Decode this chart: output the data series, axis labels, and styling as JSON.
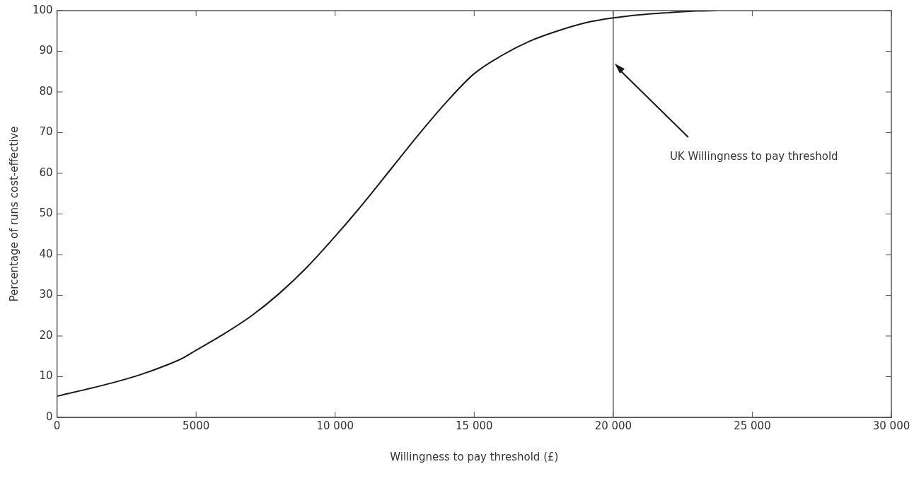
{
  "chart_data": {
    "type": "line",
    "xlabel": "Willingness to pay threshold (£)",
    "ylabel": "Percentage of runs cost-effective",
    "x": [
      0,
      1000,
      2000,
      3000,
      4000,
      4500,
      5000,
      6000,
      7000,
      8000,
      9000,
      10000,
      11000,
      12000,
      13000,
      14000,
      15000,
      16000,
      17000,
      18000,
      19000,
      20000,
      21000,
      22000,
      23000,
      23700
    ],
    "series": [
      {
        "color": "#1a1a1a",
        "values": [
          5.2,
          6.8,
          8.5,
          10.5,
          13,
          14.5,
          16.5,
          20.5,
          25,
          30.5,
          37,
          44.5,
          52.5,
          61,
          69.5,
          77.5,
          84.5,
          89,
          92.5,
          95,
          97,
          98.2,
          99,
          99.5,
          99.9,
          100
        ]
      }
    ],
    "xlim": [
      0,
      30000
    ],
    "xticks": [
      0,
      5000,
      {
        "value": 10000,
        "label": "10 000"
      },
      {
        "value": 15000,
        "label": "15 000"
      },
      {
        "value": 20000,
        "label": "20 000"
      },
      {
        "value": 25000,
        "label": "25 000"
      },
      {
        "value": 30000,
        "label": "30 000"
      }
    ],
    "ylim": [
      0,
      100
    ],
    "yticks": [
      0,
      10,
      20,
      30,
      40,
      50,
      60,
      70,
      80,
      90,
      100
    ],
    "grid": false,
    "legend": false,
    "marker": "none",
    "line_style": "solid",
    "ref_lines": [
      {
        "axis": "x",
        "value": 20000,
        "label": "UK Willingness to pay threshold",
        "color": "#8c8c8c"
      }
    ]
  }
}
